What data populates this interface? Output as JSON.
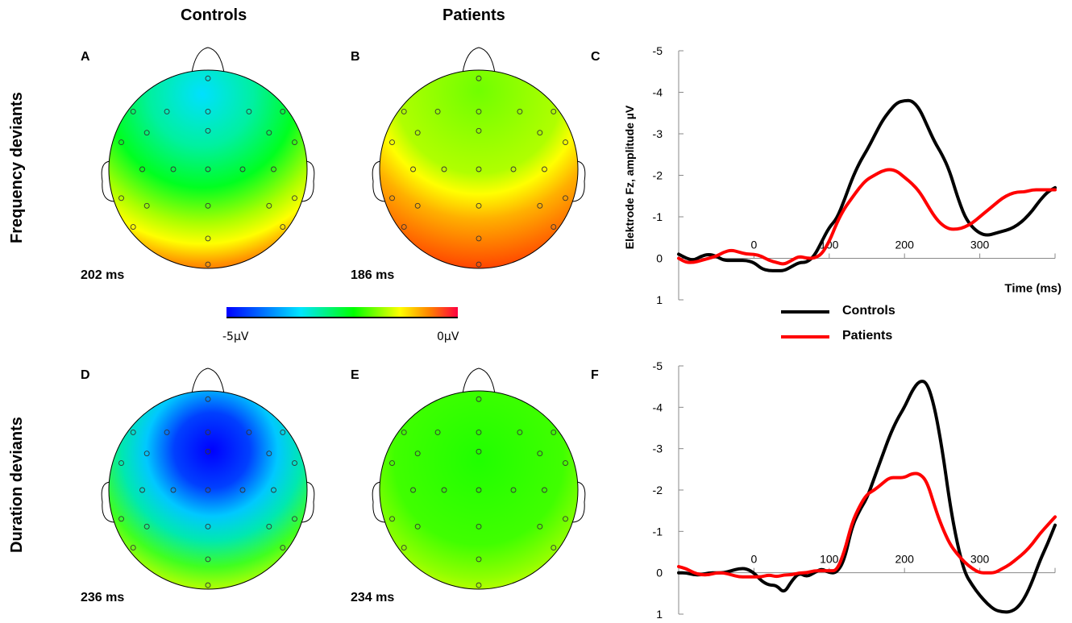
{
  "column_headers": {
    "controls": "Controls",
    "patients": "Patients"
  },
  "row_headers": {
    "frequency": "Frequency deviants",
    "duration": "Duration deviants"
  },
  "panels": {
    "A": {
      "letter": "A",
      "latency": "202 ms"
    },
    "B": {
      "letter": "B",
      "latency": "186 ms"
    },
    "C": {
      "letter": "C"
    },
    "D": {
      "letter": "D",
      "latency": "236 ms"
    },
    "E": {
      "letter": "E",
      "latency": "234 ms"
    },
    "F": {
      "letter": "F"
    }
  },
  "colorbar": {
    "min_label": "-5µV",
    "max_label": "0µV",
    "colors": [
      "#0000ff",
      "#00e5ff",
      "#00ff00",
      "#ffff00",
      "#ff8000",
      "#ff0000"
    ]
  },
  "legend": {
    "controls": "Controls",
    "patients": "Patients"
  },
  "chart_data": [
    {
      "type": "line",
      "panel": "C",
      "ylabel": "Elektrode Fz, amplitude µV",
      "xlabel": "Time (ms)",
      "ylim": [
        -5,
        1
      ],
      "y_inverted": true,
      "yticks": [
        "-5",
        "-4",
        "-3",
        "-2",
        "-1",
        "0",
        "1"
      ],
      "xticks": [
        "0",
        "100",
        "200",
        "300"
      ],
      "series": [
        {
          "name": "Controls",
          "color": "#000000",
          "x": [
            -100,
            -90,
            -80,
            -70,
            -60,
            -50,
            -40,
            -30,
            -20,
            -10,
            0,
            10,
            20,
            30,
            40,
            50,
            60,
            70,
            80,
            90,
            100,
            110,
            120,
            130,
            140,
            150,
            160,
            170,
            180,
            190,
            200,
            210,
            220,
            230,
            240,
            250,
            260,
            270,
            280,
            290,
            300,
            310,
            320,
            330,
            340,
            350,
            360,
            370,
            380,
            390,
            400
          ],
          "y": [
            -0.1,
            0,
            0.05,
            -0.05,
            -0.1,
            -0.05,
            0.05,
            0.05,
            0.05,
            0.05,
            0.1,
            0.25,
            0.3,
            0.3,
            0.3,
            0.2,
            0.1,
            0.1,
            -0.05,
            -0.4,
            -0.75,
            -0.95,
            -1.4,
            -1.9,
            -2.3,
            -2.6,
            -2.95,
            -3.3,
            -3.55,
            -3.75,
            -3.8,
            -3.8,
            -3.6,
            -3.2,
            -2.8,
            -2.5,
            -2.1,
            -1.5,
            -1.0,
            -0.75,
            -0.6,
            -0.55,
            -0.6,
            -0.65,
            -0.7,
            -0.8,
            -0.95,
            -1.15,
            -1.4,
            -1.6,
            -1.7
          ]
        },
        {
          "name": "Patients",
          "color": "#ff0000",
          "x": [
            -100,
            -90,
            -80,
            -70,
            -60,
            -50,
            -40,
            -30,
            -20,
            -10,
            0,
            10,
            20,
            30,
            40,
            50,
            60,
            70,
            80,
            90,
            100,
            110,
            120,
            130,
            140,
            150,
            160,
            170,
            180,
            190,
            200,
            210,
            220,
            230,
            240,
            250,
            260,
            270,
            280,
            290,
            300,
            310,
            320,
            330,
            340,
            350,
            360,
            370,
            380,
            390,
            400
          ],
          "y": [
            0,
            0.1,
            0.1,
            0.05,
            0,
            -0.05,
            -0.15,
            -0.2,
            -0.15,
            -0.1,
            -0.1,
            -0.05,
            0.05,
            0.1,
            0.15,
            0.05,
            -0.05,
            0,
            0,
            -0.1,
            -0.4,
            -0.85,
            -1.2,
            -1.45,
            -1.7,
            -1.9,
            -2.0,
            -2.1,
            -2.15,
            -2.1,
            -1.95,
            -1.8,
            -1.6,
            -1.3,
            -1.0,
            -0.8,
            -0.7,
            -0.7,
            -0.75,
            -0.85,
            -1.0,
            -1.15,
            -1.3,
            -1.45,
            -1.55,
            -1.6,
            -1.6,
            -1.65,
            -1.65,
            -1.65,
            -1.65
          ]
        }
      ]
    },
    {
      "type": "line",
      "panel": "F",
      "ylabel": "",
      "xlabel": "",
      "ylim": [
        -5,
        1
      ],
      "y_inverted": true,
      "yticks": [
        "-5",
        "-4",
        "-3",
        "-2",
        "-1",
        "0",
        "1"
      ],
      "xticks": [
        "0",
        "100",
        "200",
        "300"
      ],
      "series": [
        {
          "name": "Controls",
          "color": "#000000",
          "x": [
            -100,
            -90,
            -80,
            -70,
            -60,
            -50,
            -40,
            -30,
            -20,
            -10,
            0,
            10,
            20,
            30,
            40,
            50,
            60,
            70,
            80,
            90,
            100,
            110,
            120,
            130,
            140,
            150,
            160,
            170,
            180,
            190,
            200,
            210,
            220,
            230,
            240,
            250,
            260,
            270,
            280,
            290,
            300,
            310,
            320,
            330,
            340,
            350,
            360,
            370,
            380,
            390,
            400
          ],
          "y": [
            0,
            0,
            0.05,
            0.05,
            0,
            0,
            0,
            -0.05,
            -0.1,
            -0.1,
            0,
            0.2,
            0.3,
            0.3,
            0.5,
            0.2,
            0,
            0.1,
            0,
            -0.1,
            0,
            0,
            -0.3,
            -1.1,
            -1.5,
            -1.8,
            -2.3,
            -2.8,
            -3.3,
            -3.7,
            -4.0,
            -4.4,
            -4.65,
            -4.6,
            -4.0,
            -3.0,
            -1.7,
            -0.7,
            0,
            0.3,
            0.55,
            0.75,
            0.9,
            0.95,
            0.95,
            0.85,
            0.6,
            0.2,
            -0.3,
            -0.7,
            -1.15
          ]
        },
        {
          "name": "Patients",
          "color": "#ff0000",
          "x": [
            -100,
            -90,
            -80,
            -70,
            -60,
            -50,
            -40,
            -30,
            -20,
            -10,
            0,
            10,
            20,
            30,
            40,
            50,
            60,
            70,
            80,
            90,
            100,
            110,
            120,
            130,
            140,
            150,
            160,
            170,
            180,
            190,
            200,
            210,
            220,
            230,
            240,
            250,
            260,
            270,
            280,
            290,
            300,
            310,
            320,
            330,
            340,
            350,
            360,
            370,
            380,
            390,
            400
          ],
          "y": [
            -0.15,
            -0.1,
            0,
            0.05,
            0.05,
            0,
            0,
            0.05,
            0.1,
            0.1,
            0.1,
            0.1,
            0.05,
            0.1,
            0.05,
            0.05,
            0,
            0,
            -0.05,
            -0.05,
            -0.05,
            -0.05,
            -0.5,
            -1.2,
            -1.6,
            -1.9,
            -2.0,
            -2.15,
            -2.3,
            -2.3,
            -2.3,
            -2.4,
            -2.4,
            -2.2,
            -1.6,
            -1.1,
            -0.7,
            -0.45,
            -0.25,
            -0.1,
            0,
            0,
            0,
            -0.1,
            -0.2,
            -0.35,
            -0.5,
            -0.7,
            -0.95,
            -1.15,
            -1.35
          ]
        }
      ]
    }
  ]
}
